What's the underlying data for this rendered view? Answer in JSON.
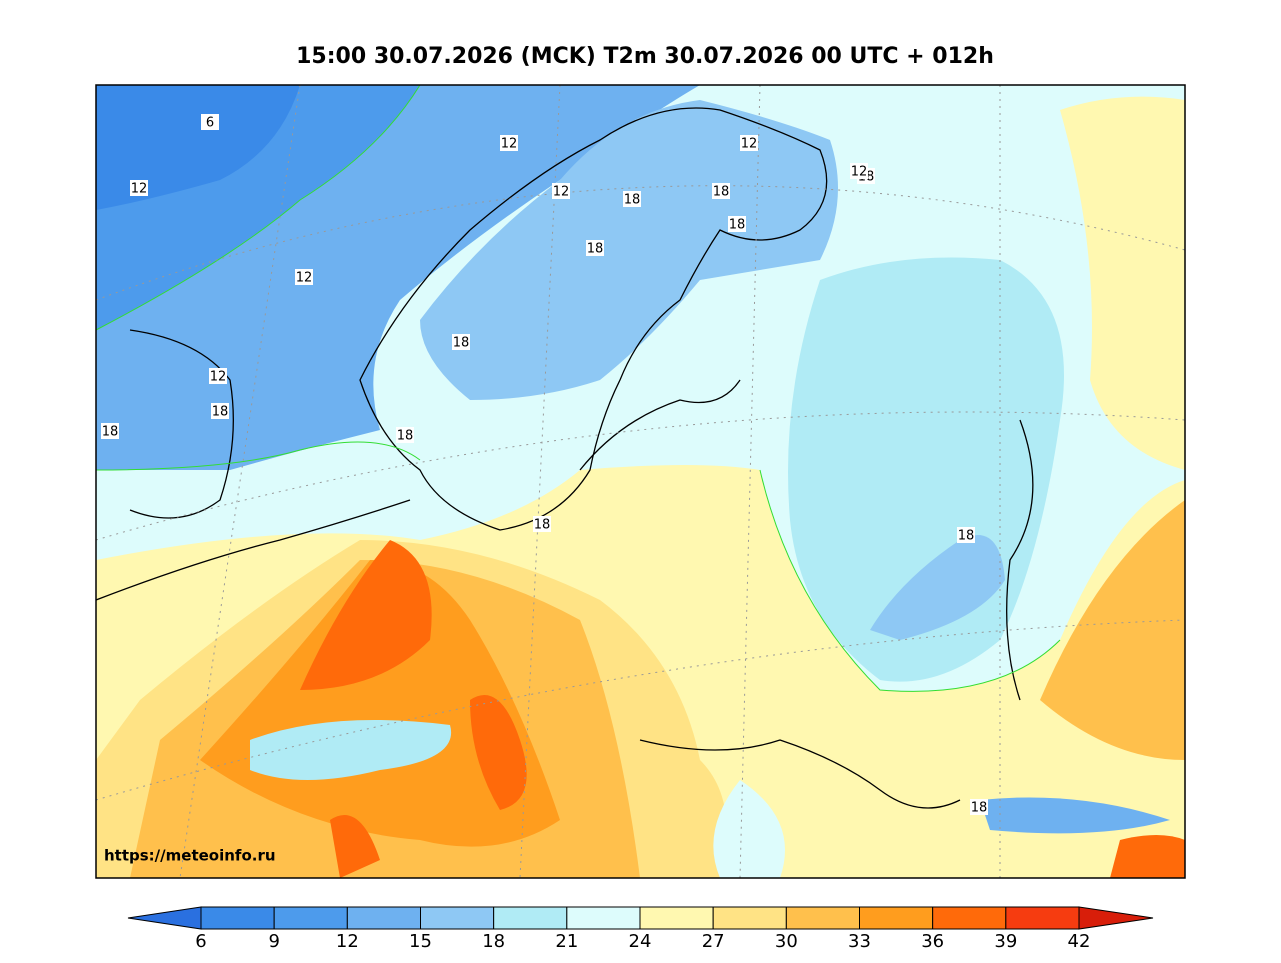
{
  "title": "15:00 30.07.2026 (MCK) T2m 30.07.2026 00 UTC + 012h",
  "credit": "https://meteoinfo.ru",
  "contour_labels": [
    "6",
    "12",
    "12",
    "12",
    "12",
    "12",
    "18",
    "18",
    "18",
    "18",
    "18",
    "12",
    "18",
    "12",
    "18",
    "18",
    "18",
    "18",
    "18",
    "18"
  ],
  "colorbar": {
    "ticks": [
      6,
      9,
      12,
      15,
      18,
      21,
      24,
      27,
      30,
      33,
      36,
      39,
      42
    ],
    "colors": [
      "#2a70e0",
      "#3a8ae8",
      "#4d9bec",
      "#6eb1f0",
      "#8ec8f4",
      "#b0ebf5",
      "#ddfcfc",
      "#fff8b0",
      "#ffe385",
      "#ffc04c",
      "#ff9d1e",
      "#ff6a0a",
      "#f63c10",
      "#d81e0a"
    ]
  }
}
